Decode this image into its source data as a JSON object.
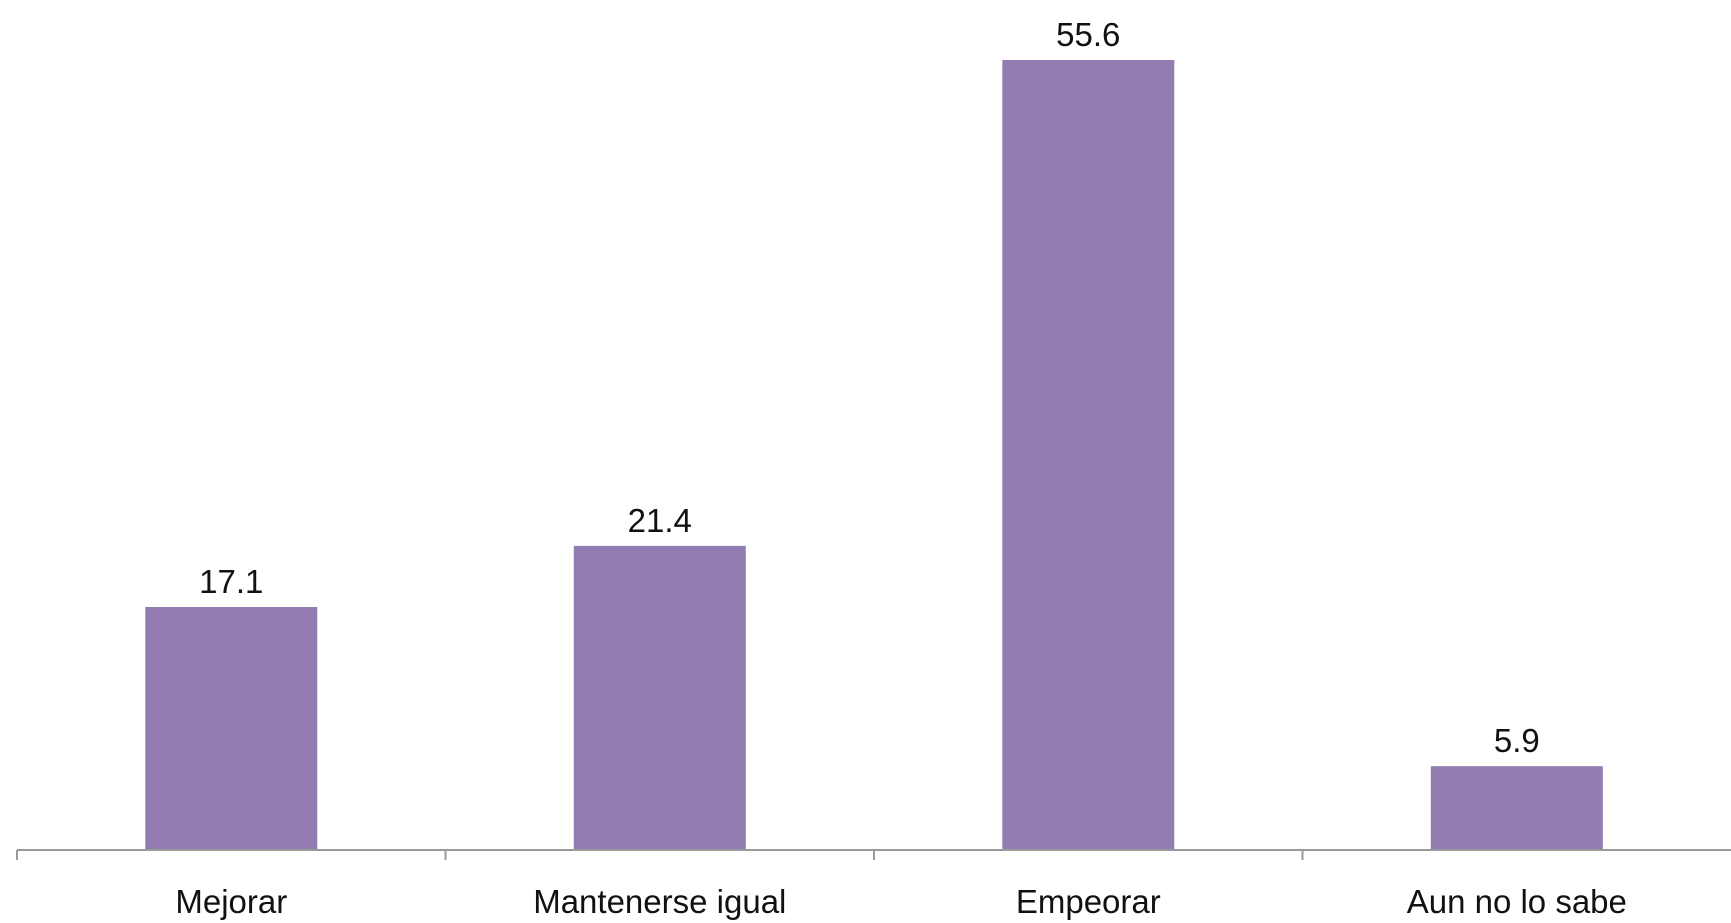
{
  "chart_data": {
    "type": "bar",
    "categories": [
      "Mejorar",
      "Mantenerse igual",
      "Empeorar",
      "Aun no lo sabe"
    ],
    "values": [
      17.1,
      21.4,
      55.6,
      5.9
    ],
    "data_labels": [
      "17.1",
      "21.4",
      "55.6",
      "5.9"
    ],
    "title": "",
    "xlabel": "",
    "ylabel": "",
    "ylim": [
      0,
      55.6
    ],
    "grid": false,
    "legend": "none",
    "bar_color": "#937cb2",
    "axis_color": "#9a9a9a",
    "text_color": "#111111"
  }
}
